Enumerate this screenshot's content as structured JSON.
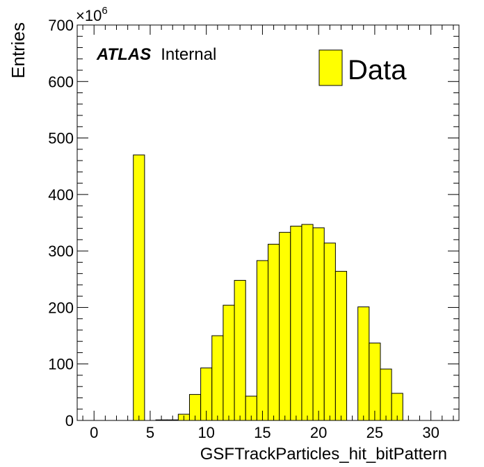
{
  "chart_data": {
    "type": "histogram",
    "xlabel": "GSFTrackParticles_hit_bitPattern",
    "ylabel": "Entries",
    "y_multiplier_label": "×10",
    "y_multiplier_exponent": "6",
    "xlim": [
      -1.5,
      32.5
    ],
    "ylim": [
      0,
      700
    ],
    "x_ticks": [
      0,
      5,
      10,
      15,
      20,
      25,
      30
    ],
    "y_ticks": [
      0,
      100,
      200,
      300,
      400,
      500,
      600,
      700
    ],
    "bin_edges": [
      -1.5,
      -0.5,
      0.5,
      1.5,
      2.5,
      3.5,
      4.5,
      5.5,
      6.5,
      7.5,
      8.5,
      9.5,
      10.5,
      11.5,
      12.5,
      13.5,
      14.5,
      15.5,
      16.5,
      17.5,
      18.5,
      19.5,
      20.5,
      21.5,
      22.5,
      23.5,
      24.5,
      25.5,
      26.5,
      27.5,
      28.5,
      29.5,
      30.5,
      31.5,
      32.5
    ],
    "values": [
      0,
      0,
      0,
      0,
      0,
      470,
      0,
      1,
      1,
      11,
      46,
      93,
      150,
      204,
      248,
      43,
      283,
      312,
      333,
      344,
      347,
      341,
      314,
      264,
      0,
      201,
      137,
      91,
      48,
      0,
      0,
      0,
      0,
      0
    ],
    "series": [
      {
        "name": "Data",
        "color": "#ffff00"
      }
    ],
    "legend_position": "top-right",
    "grid": false,
    "annotations": [
      {
        "bold_text": "ATLAS",
        "text": "Internal"
      }
    ]
  }
}
